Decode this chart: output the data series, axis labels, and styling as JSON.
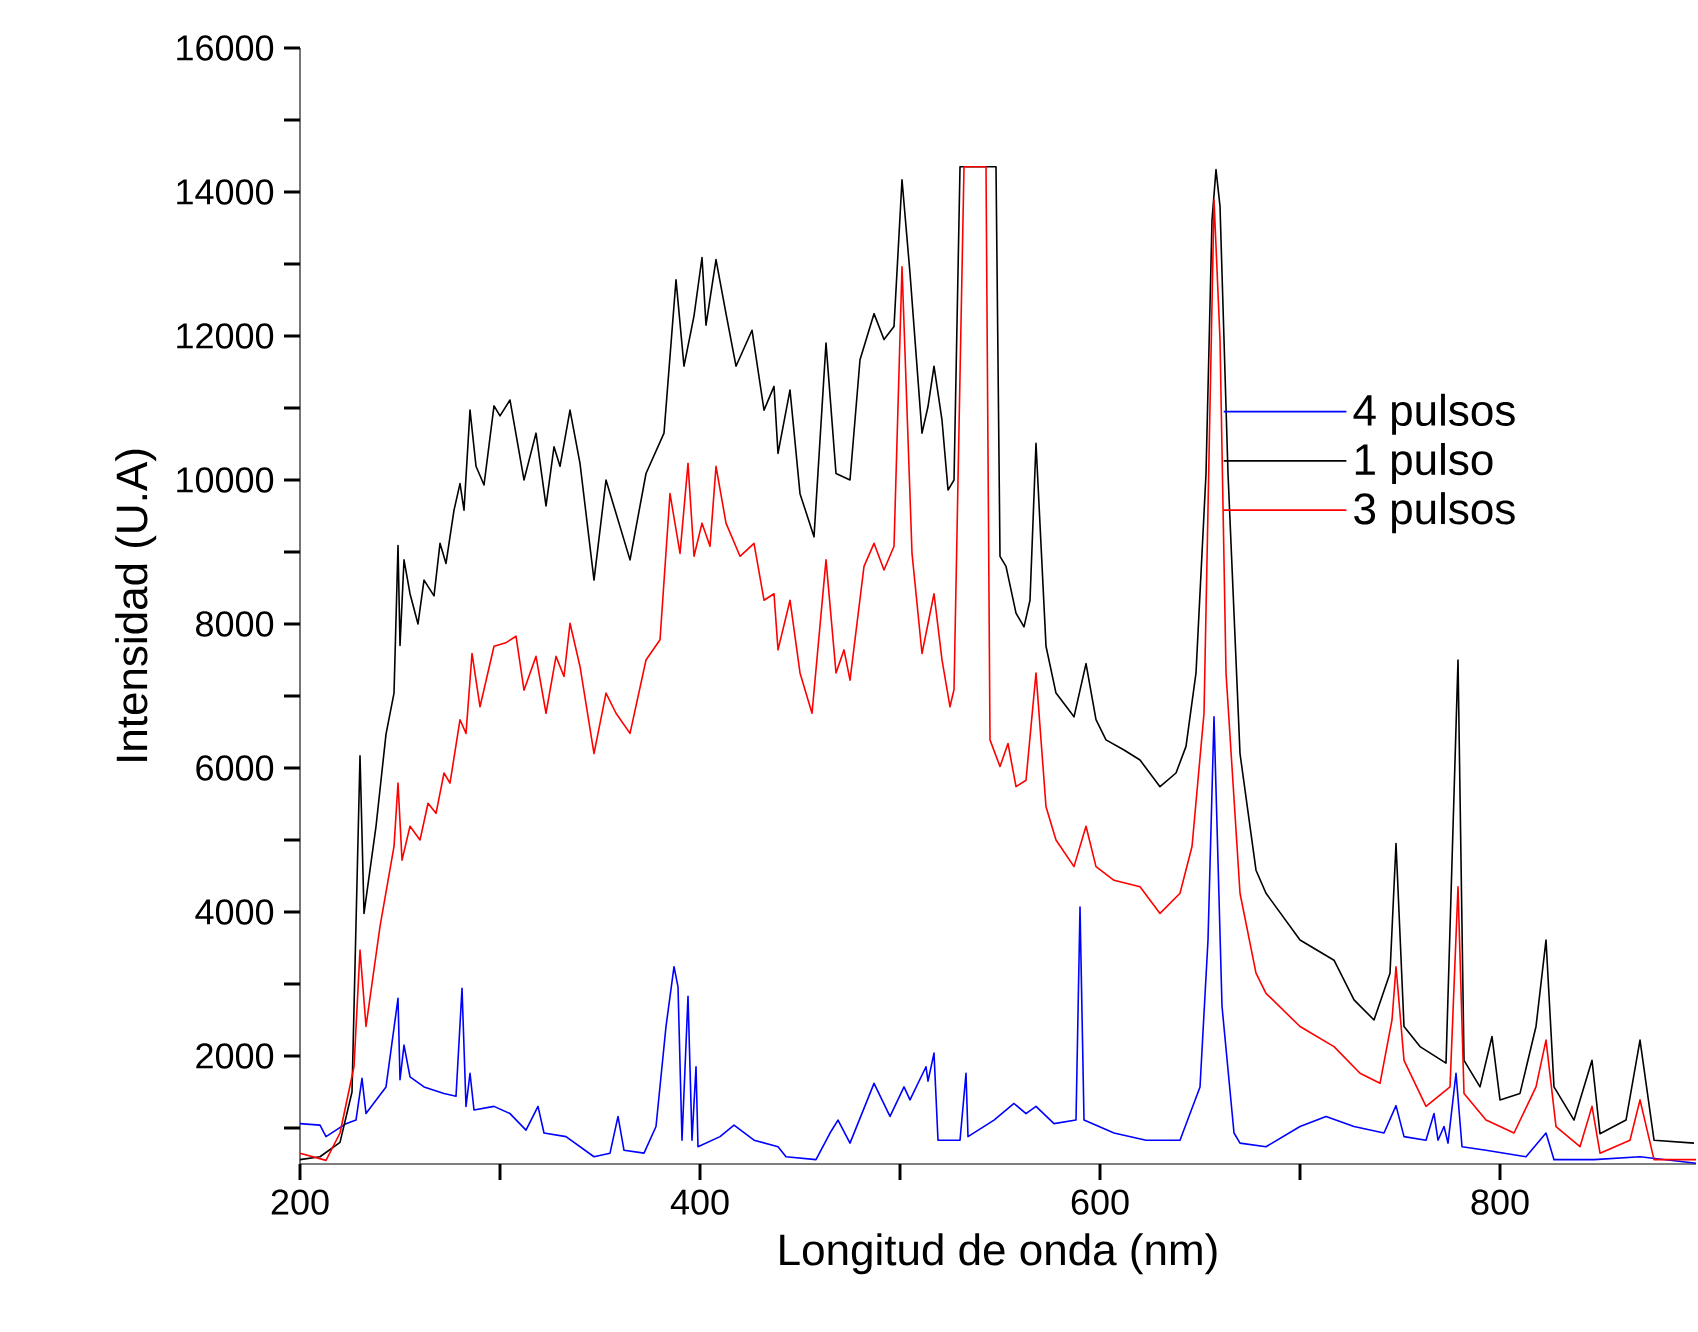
{
  "chart_data": {
    "type": "line",
    "xlabel": "Longitud de onda (nm)",
    "ylabel": "Intensidad (U.A)",
    "xlim": [
      200,
      898
    ],
    "ylim": [
      500,
      16000
    ],
    "xticks": [
      200,
      {
        "value": 300,
        "label": null
      },
      400,
      {
        "value": 500,
        "label": null
      },
      600,
      {
        "value": 700,
        "label": null
      },
      800
    ],
    "yticks": [
      {
        "value": 1000,
        "label": null
      },
      2000,
      {
        "value": 3000,
        "label": null
      },
      4000,
      {
        "value": 5000,
        "label": null
      },
      6000,
      {
        "value": 7000,
        "label": null
      },
      8000,
      {
        "value": 9000,
        "label": null
      },
      10000,
      {
        "value": 11000,
        "label": null
      },
      12000,
      {
        "value": 13000,
        "label": null
      },
      14000,
      {
        "value": 15000,
        "label": null
      },
      16000
    ],
    "legend": "right",
    "series": [
      {
        "name": "4 pulsos",
        "color": "#0000ff",
        "x": [
          200,
          210,
          213,
          223,
          228,
          231,
          233,
          243,
          249,
          250,
          252,
          255,
          262,
          272,
          278,
          281,
          283,
          285,
          287,
          297,
          305,
          313,
          319,
          322,
          333,
          347,
          355,
          359,
          362,
          372,
          378,
          383,
          387,
          389,
          391,
          394,
          396,
          398,
          399,
          410,
          417,
          427,
          439,
          443,
          458,
          465,
          469,
          475,
          487,
          495,
          502,
          505,
          513,
          514,
          517,
          519,
          530,
          533,
          534,
          547,
          557,
          563,
          568,
          577,
          588,
          590,
          592,
          607,
          623,
          640,
          650,
          654,
          657,
          661,
          667,
          670,
          683,
          700,
          713,
          727,
          742,
          748,
          752,
          763,
          767,
          769,
          772,
          774,
          778,
          781,
          793,
          813,
          823,
          827,
          847,
          870,
          898
        ],
        "values": [
          1060,
          1040,
          880,
          1060,
          1110,
          1690,
          1200,
          1570,
          2800,
          1670,
          2150,
          1710,
          1570,
          1480,
          1440,
          2940,
          1300,
          1760,
          1250,
          1300,
          1200,
          970,
          1300,
          930,
          880,
          600,
          650,
          1160,
          690,
          650,
          1020,
          2410,
          3240,
          2960,
          830,
          2830,
          830,
          1850,
          740,
          880,
          1040,
          830,
          740,
          600,
          560,
          930,
          1110,
          790,
          1620,
          1160,
          1570,
          1390,
          1850,
          1650,
          2040,
          830,
          830,
          1760,
          880,
          1110,
          1340,
          1200,
          1300,
          1060,
          1110,
          4070,
          1110,
          930,
          830,
          830,
          1570,
          3610,
          6710,
          2690,
          930,
          790,
          740,
          1020,
          1160,
          1020,
          930,
          1310,
          880,
          830,
          1200,
          830,
          1020,
          790,
          1760,
          740,
          690,
          600,
          930,
          560,
          560,
          600,
          510
        ]
      },
      {
        "name": "1 pulso",
        "color": "#000000",
        "x": [
          200,
          210,
          220,
          226,
          230,
          232,
          238,
          243,
          247,
          249,
          250,
          252,
          255,
          259,
          262,
          267,
          270,
          273,
          277,
          280,
          282,
          285,
          288,
          292,
          297,
          300,
          305,
          312,
          318,
          323,
          327,
          330,
          335,
          340,
          347,
          353,
          365,
          373,
          382,
          388,
          392,
          397,
          401,
          403,
          408,
          413,
          418,
          426,
          432,
          437,
          439,
          445,
          450,
          457,
          463,
          468,
          475,
          480,
          487,
          492,
          497,
          501,
          505,
          511,
          514,
          517,
          521,
          524,
          527,
          530,
          548,
          550,
          553,
          558,
          562,
          565,
          568,
          573,
          578,
          587,
          593,
          598,
          603,
          612,
          620,
          630,
          638,
          643,
          648,
          653,
          656,
          658,
          660,
          664,
          670,
          678,
          683,
          700,
          717,
          727,
          737,
          745,
          748,
          752,
          760,
          773,
          779,
          782,
          790,
          796,
          800,
          810,
          818,
          823,
          827,
          837,
          846,
          850,
          863,
          870,
          877,
          897
        ],
        "values": [
          560,
          600,
          800,
          1500,
          6170,
          3980,
          5190,
          6470,
          7040,
          9090,
          7700,
          8890,
          8420,
          8000,
          8610,
          8390,
          9120,
          8840,
          9580,
          9950,
          9580,
          10970,
          10190,
          9930,
          11030,
          10890,
          11110,
          10000,
          10650,
          9640,
          10460,
          10190,
          10970,
          10230,
          8610,
          10000,
          8890,
          10090,
          10650,
          12780,
          11580,
          12280,
          13090,
          12150,
          13060,
          12310,
          11580,
          12080,
          10970,
          11300,
          10370,
          11250,
          9810,
          9210,
          11900,
          10090,
          10000,
          11670,
          12310,
          11950,
          12130,
          14170,
          12870,
          10650,
          11020,
          11580,
          10830,
          9860,
          10000,
          14350,
          14350,
          8940,
          8800,
          8150,
          7960,
          8330,
          10510,
          7690,
          7040,
          6710,
          7450,
          6670,
          6390,
          6250,
          6110,
          5740,
          5930,
          6300,
          7320,
          10090,
          13610,
          14310,
          13800,
          10090,
          6200,
          4580,
          4260,
          3610,
          3330,
          2780,
          2500,
          3150,
          4950,
          2410,
          2130,
          1900,
          7500,
          1940,
          1570,
          2270,
          1390,
          1480,
          2410,
          3610,
          1570,
          1110,
          1940,
          920,
          1110,
          2220,
          830,
          790
        ]
      },
      {
        "name": "3 pulsos",
        "color": "#ff0000",
        "x": [
          200,
          213,
          220,
          227,
          230,
          233,
          240,
          247,
          249,
          251,
          255,
          260,
          264,
          268,
          272,
          275,
          280,
          283,
          286,
          290,
          297,
          303,
          308,
          312,
          318,
          323,
          328,
          332,
          335,
          340,
          347,
          353,
          358,
          365,
          373,
          380,
          385,
          390,
          394,
          397,
          401,
          405,
          408,
          413,
          420,
          427,
          432,
          437,
          439,
          445,
          450,
          456,
          463,
          468,
          472,
          475,
          482,
          487,
          492,
          497,
          501,
          506,
          511,
          517,
          521,
          525,
          527,
          532,
          543,
          545,
          550,
          554,
          558,
          563,
          568,
          573,
          578,
          587,
          593,
          598,
          607,
          620,
          630,
          640,
          646,
          652,
          655,
          657,
          660,
          663,
          670,
          678,
          683,
          700,
          717,
          730,
          740,
          746,
          748,
          752,
          763,
          775,
          779,
          782,
          793,
          807,
          818,
          823,
          828,
          840,
          846,
          850,
          865,
          870,
          877,
          898
        ],
        "values": [
          650,
          550,
          930,
          1850,
          3470,
          2410,
          3800,
          4910,
          5790,
          4720,
          5190,
          5000,
          5510,
          5370,
          5930,
          5790,
          6670,
          6480,
          7590,
          6850,
          7690,
          7740,
          7830,
          7080,
          7550,
          6760,
          7550,
          7270,
          8010,
          7410,
          6200,
          7040,
          6760,
          6480,
          7500,
          7780,
          9810,
          8980,
          10230,
          8940,
          9400,
          9080,
          10190,
          9400,
          8940,
          9120,
          8330,
          8420,
          7640,
          8330,
          7320,
          6760,
          8890,
          7320,
          7640,
          7220,
          8800,
          9120,
          8750,
          9080,
          12960,
          8980,
          7590,
          8420,
          7500,
          6850,
          7090,
          14350,
          14350,
          6390,
          6020,
          6340,
          5740,
          5830,
          7320,
          5460,
          5000,
          4630,
          5190,
          4630,
          4440,
          4350,
          3980,
          4260,
          4910,
          6760,
          11020,
          13890,
          11950,
          7320,
          4260,
          3150,
          2870,
          2410,
          2130,
          1760,
          1620,
          2500,
          3240,
          1940,
          1300,
          1570,
          4350,
          1480,
          1110,
          930,
          1570,
          2220,
          1020,
          740,
          1300,
          650,
          830,
          1390,
          560,
          560
        ]
      }
    ]
  }
}
